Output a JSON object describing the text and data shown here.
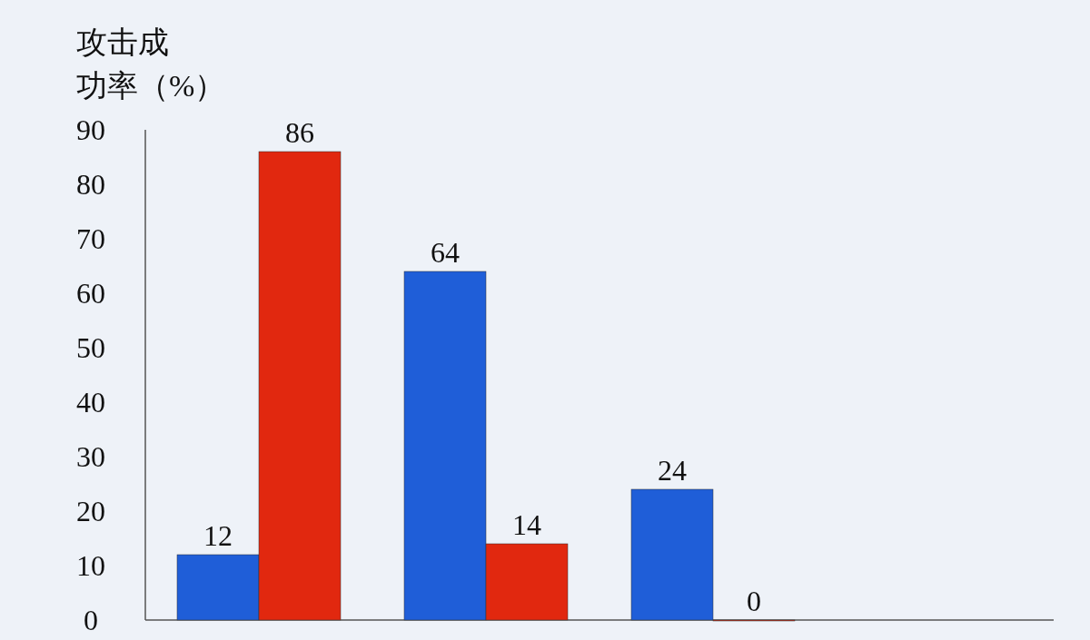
{
  "chart_data": {
    "type": "bar",
    "ylabel": "攻击成功率（%）",
    "categories": [
      null,
      null,
      null,
      null
    ],
    "series": [
      {
        "color": "#1f5ed8",
        "values": [
          12,
          64,
          24,
          null
        ]
      },
      {
        "color": "#e1280f",
        "values": [
          86,
          14,
          0,
          null
        ]
      }
    ],
    "ylim": [
      0,
      90
    ],
    "yticks": [
      0,
      10,
      20,
      30,
      40,
      50,
      60,
      70,
      80,
      90
    ],
    "data_labels": true,
    "grid": false
  }
}
